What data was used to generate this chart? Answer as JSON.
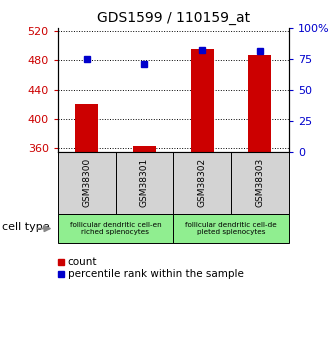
{
  "title": "GDS1599 / 110159_at",
  "samples": [
    "GSM38300",
    "GSM38301",
    "GSM38302",
    "GSM38303"
  ],
  "counts": [
    421,
    363,
    496,
    487
  ],
  "percentile_ranks": [
    75,
    71,
    82,
    81
  ],
  "ylim_left": [
    355,
    525
  ],
  "ylim_right": [
    0,
    100
  ],
  "yticks_left": [
    360,
    400,
    440,
    480,
    520
  ],
  "yticks_right": [
    0,
    25,
    50,
    75,
    100
  ],
  "ytick_labels_right": [
    "0",
    "25",
    "50",
    "75",
    "100%"
  ],
  "bar_color": "#cc0000",
  "dot_color": "#0000cc",
  "cell_type_label": "cell type",
  "legend_count_label": "count",
  "legend_pct_label": "percentile rank within the sample",
  "bar_width": 0.4,
  "sample_box_color": "#d3d3d3",
  "ct_color": "#90ee90",
  "ct_labels": [
    "follicular dendritic cell-en\nriched splenocytes",
    "follicular dendritic cell-de\npleted splenocytes"
  ]
}
